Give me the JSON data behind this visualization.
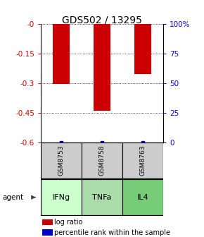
{
  "title": "GDS502 / 13295",
  "samples": [
    "GSM8753",
    "GSM8758",
    "GSM8763"
  ],
  "agents": [
    "IFNg",
    "TNFa",
    "IL4"
  ],
  "log_ratios": [
    -0.305,
    -0.44,
    -0.255
  ],
  "ylim": [
    -0.6,
    0.0
  ],
  "yticks_left": [
    0.0,
    -0.15,
    -0.3,
    -0.45,
    -0.6
  ],
  "yticks_left_labels": [
    "-0",
    "-0.15",
    "-0.3",
    "-0.45",
    "-0.6"
  ],
  "yticks_right_labels": [
    "100%",
    "75",
    "50",
    "25",
    "0"
  ],
  "bar_color": "#cc0000",
  "pct_color": "#0000cc",
  "sample_box_color": "#cccccc",
  "agent_colors": [
    "#ccffcc",
    "#aaddaa",
    "#77cc77"
  ],
  "grid_color": "#888888",
  "legend_log_color": "#cc0000",
  "legend_pct_color": "#0000cc",
  "bg_color": "#ffffff"
}
